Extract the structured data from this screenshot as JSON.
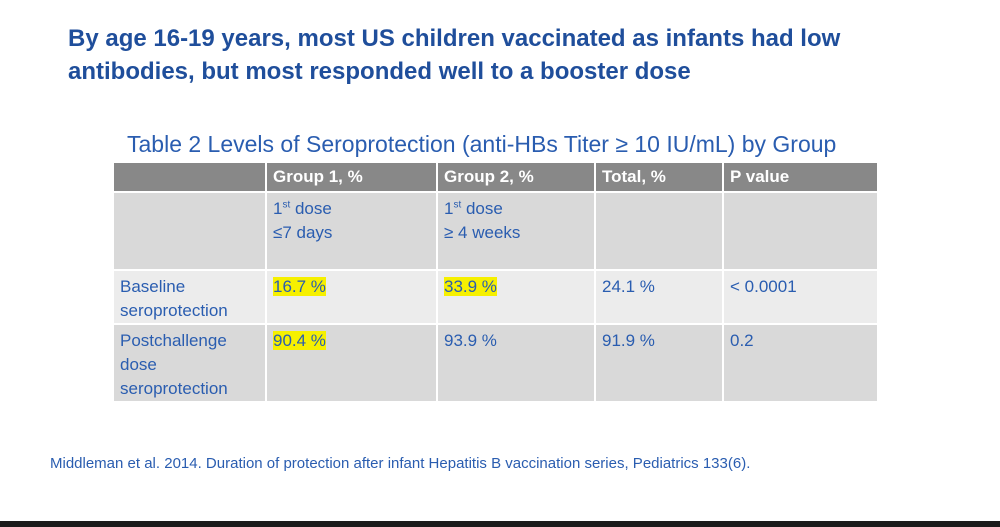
{
  "slide": {
    "title": "By age 16-19 years, most US children vaccinated as infants had low antibodies, but most responded well to a booster dose",
    "table_title": "Table 2 Levels of Seroprotection (anti-HBs Titer ≥ 10 IU/mL) by Group",
    "citation": "Middleman et al. 2014. Duration of protection after infant Hepatitis B vaccination series, Pediatrics 133(6)."
  },
  "table": {
    "headers": [
      "",
      "Group 1, %",
      "Group 2, %",
      "Total, %",
      "P value"
    ],
    "subheader": {
      "group1": {
        "ord_num": "1",
        "ord_sup": "st",
        "dose": " dose",
        "timing": "≤7 days"
      },
      "group2": {
        "ord_num": "1",
        "ord_sup": "st",
        "dose": " dose",
        "timing": "≥ 4 weeks"
      }
    },
    "rows": [
      {
        "label_line1": "Baseline",
        "label_line2": "seroprotection",
        "label_line3": "",
        "group1": "16.7 %",
        "group2": "33.9 %",
        "total": "24.1 %",
        "p_value": "< 0.0001"
      },
      {
        "label_line1": "Postchallenge",
        "label_line2": "dose",
        "label_line3": "seroprotection",
        "group1": "90.4 %",
        "group2": "93.9 %",
        "total": "91.9 %",
        "p_value": "0.2"
      }
    ]
  },
  "colors": {
    "title": "#1f4e9b",
    "text": "#2a5db0",
    "header_bg": "#888888",
    "row_dark": "#d9d9d9",
    "row_light": "#ececec",
    "highlight": "#f6f000"
  }
}
